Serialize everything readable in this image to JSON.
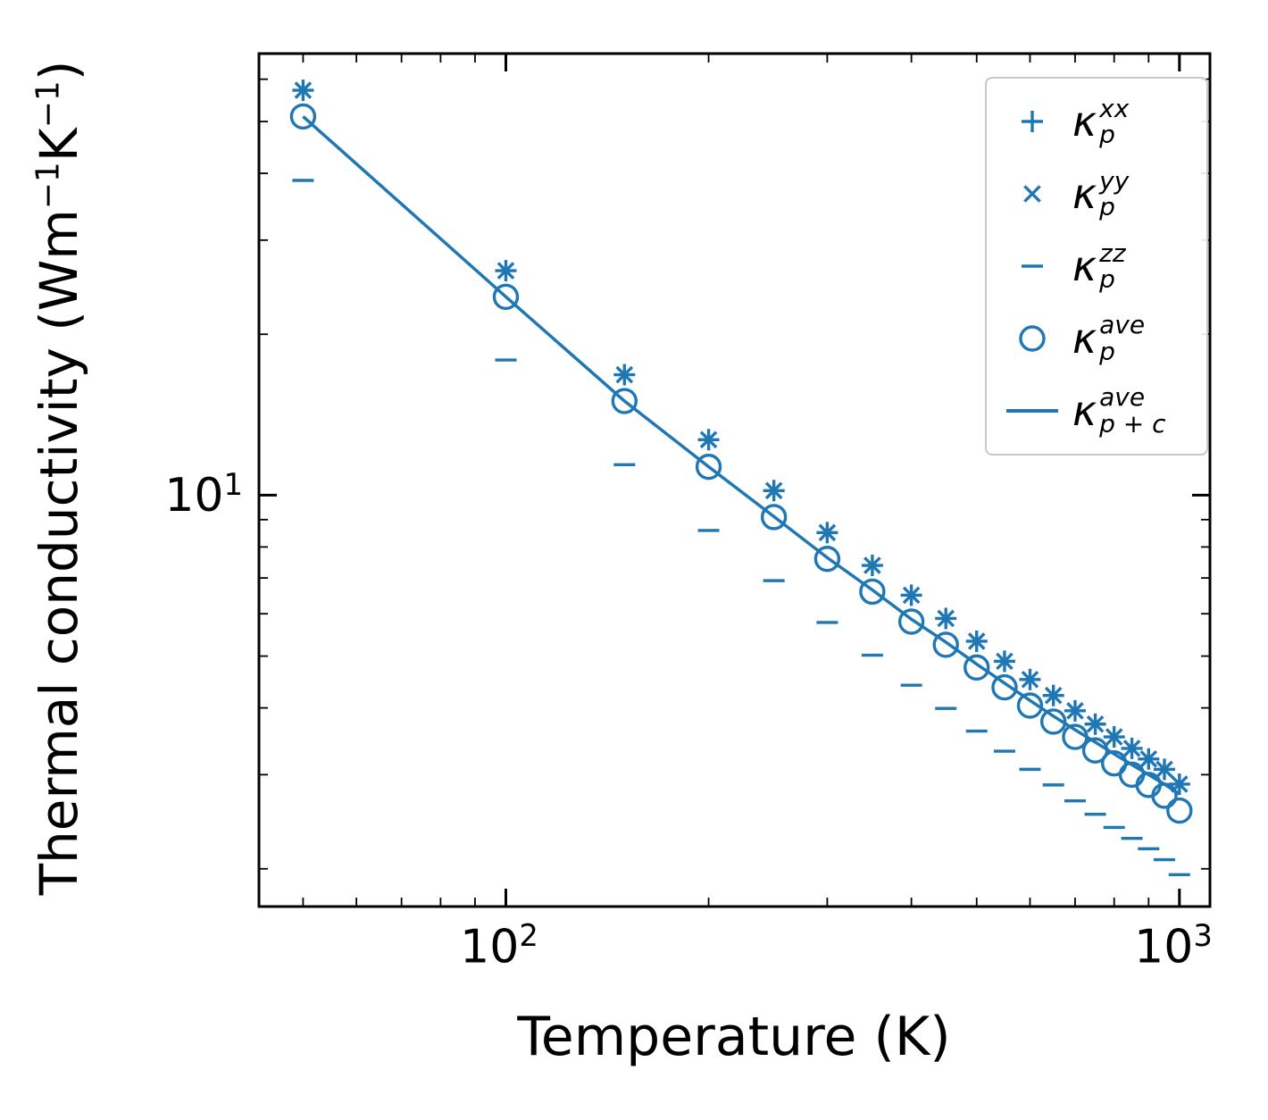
{
  "figure": {
    "xlabel": "Temperature (K)",
    "ylabel_parts": {
      "pre": "Thermal conductivity (Wm",
      "sup1": "−1",
      "mid": "K",
      "sup2": "−1",
      "post": ")"
    },
    "x_ticks": [
      {
        "base": "10",
        "exp": "2"
      },
      {
        "base": "10",
        "exp": "3"
      }
    ],
    "y_ticks": [
      {
        "base": "10",
        "exp": "1"
      }
    ]
  },
  "legend": {
    "entries": [
      {
        "id": "kappa-p-xx",
        "marker": "plus",
        "symbol": "κ",
        "sup": "xx",
        "sub": "p"
      },
      {
        "id": "kappa-p-yy",
        "marker": "cross",
        "symbol": "κ",
        "sup": "yy",
        "sub": "p"
      },
      {
        "id": "kappa-p-zz",
        "marker": "dash",
        "symbol": "κ",
        "sup": "zz",
        "sub": "p"
      },
      {
        "id": "kappa-p-ave",
        "marker": "circle",
        "symbol": "κ",
        "sup": "ave",
        "sub": "p"
      },
      {
        "id": "kappa-p-plus-c-ave",
        "marker": "line",
        "symbol": "κ",
        "sup": "ave",
        "sub": "p + c"
      }
    ]
  },
  "chart_data": {
    "type": "scatter",
    "title": "",
    "xlabel": "Temperature (K)",
    "ylabel": "Thermal conductivity (Wm⁻¹K⁻¹)",
    "xscale": "log",
    "yscale": "log",
    "xlim": [
      43,
      1110
    ],
    "ylim": [
      1.7,
      67
    ],
    "x_major_ticks": [
      100,
      1000
    ],
    "x_minor_ticks": [
      50,
      60,
      70,
      80,
      90,
      200,
      300,
      400,
      500,
      600,
      700,
      800,
      900
    ],
    "y_major_ticks": [
      10
    ],
    "y_minor_ticks": [
      2,
      3,
      4,
      5,
      6,
      7,
      8,
      9,
      20,
      30,
      40,
      50,
      60
    ],
    "grid": false,
    "legend_position": "upper right",
    "color": "#1f77b4",
    "x": [
      50,
      100,
      150,
      200,
      250,
      300,
      350,
      400,
      450,
      500,
      550,
      600,
      650,
      700,
      750,
      800,
      850,
      900,
      950,
      1000
    ],
    "series": [
      {
        "name": "kappa_p_xx",
        "marker": "plus",
        "type": "scatter",
        "values": [
          57.2,
          26.3,
          16.8,
          12.7,
          10.2,
          8.51,
          7.39,
          6.5,
          5.88,
          5.33,
          4.89,
          4.52,
          4.22,
          3.95,
          3.73,
          3.53,
          3.36,
          3.21,
          3.07,
          2.88
        ]
      },
      {
        "name": "kappa_p_yy",
        "marker": "cross",
        "type": "scatter",
        "values": [
          57.2,
          26.3,
          16.8,
          12.7,
          10.2,
          8.51,
          7.39,
          6.5,
          5.88,
          5.33,
          4.89,
          4.52,
          4.22,
          3.95,
          3.73,
          3.53,
          3.36,
          3.21,
          3.07,
          2.88
        ]
      },
      {
        "name": "kappa_p_zz",
        "marker": "dash",
        "type": "scatter",
        "values": [
          38.8,
          17.9,
          11.4,
          8.59,
          6.92,
          5.78,
          5.02,
          4.41,
          3.99,
          3.62,
          3.32,
          3.07,
          2.87,
          2.68,
          2.53,
          2.39,
          2.28,
          2.18,
          2.08,
          1.95
        ]
      },
      {
        "name": "kappa_p_ave",
        "marker": "circle",
        "type": "scatter",
        "values": [
          51.1,
          23.5,
          15.0,
          11.3,
          9.1,
          7.6,
          6.6,
          5.8,
          5.25,
          4.76,
          4.37,
          4.04,
          3.77,
          3.53,
          3.33,
          3.15,
          3.0,
          2.87,
          2.74,
          2.57
        ]
      },
      {
        "name": "kappa_p_plus_c_ave",
        "marker": "line",
        "type": "line",
        "values": [
          51.1,
          23.5,
          15.0,
          11.3,
          9.12,
          7.64,
          6.65,
          5.86,
          5.31,
          4.83,
          4.45,
          4.13,
          3.86,
          3.64,
          3.45,
          3.28,
          3.13,
          3.0,
          2.88,
          2.76
        ]
      }
    ]
  }
}
